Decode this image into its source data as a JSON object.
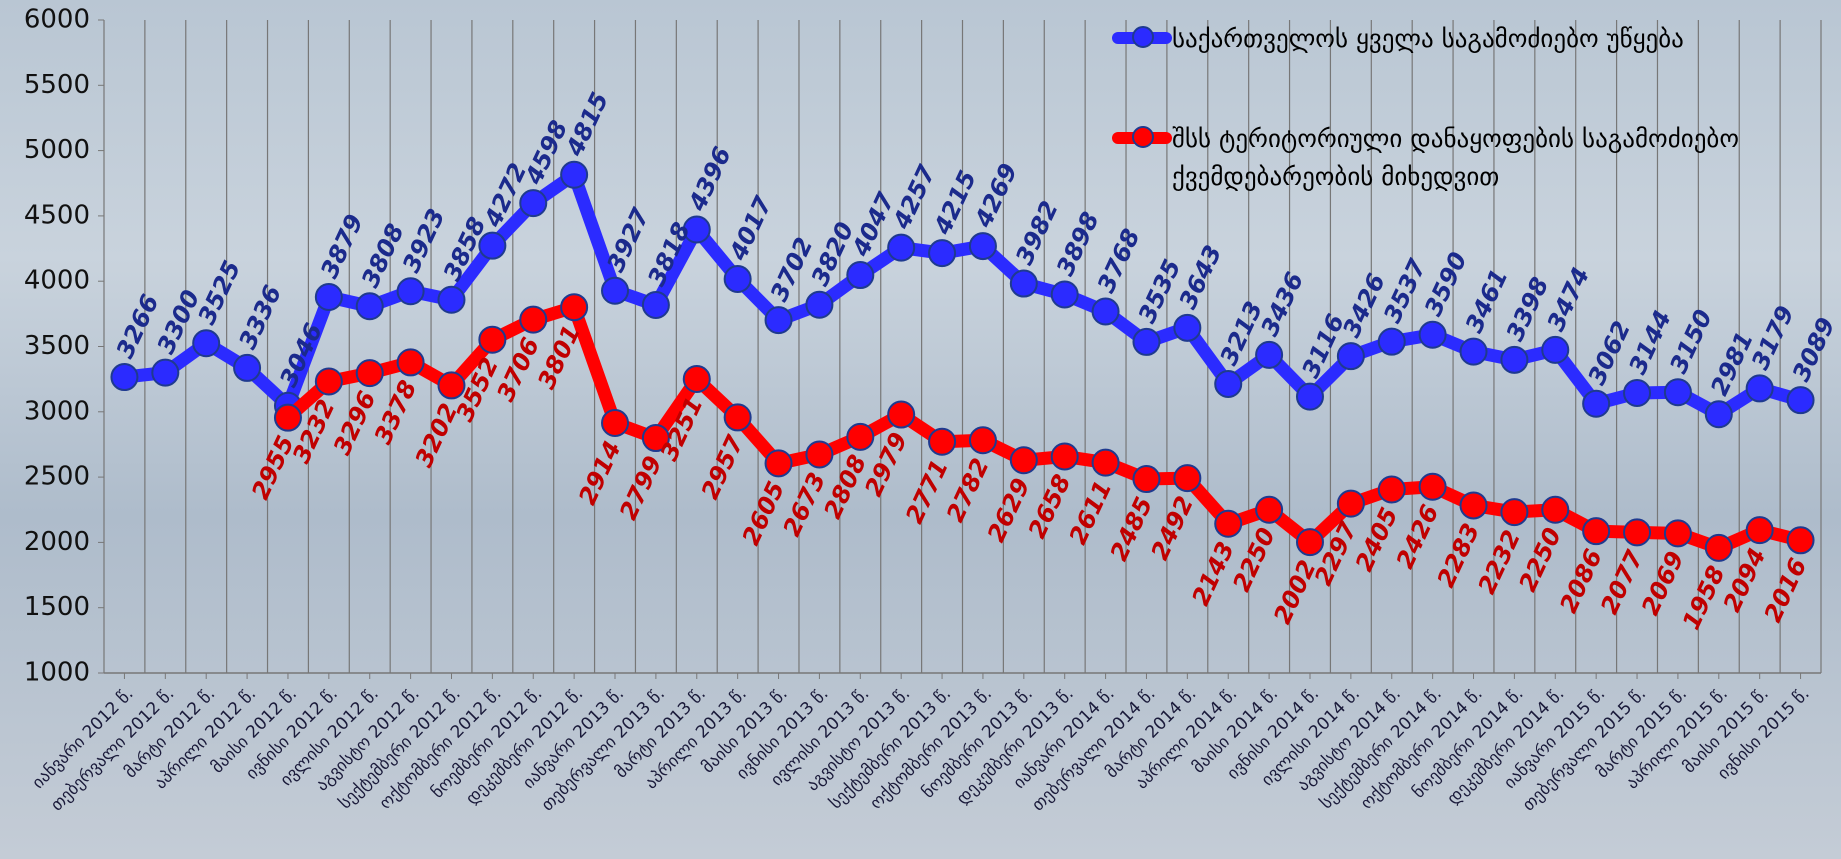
{
  "chart_data": {
    "type": "line",
    "categories": [
      "იანვარი 2012 წ.",
      "თებერვალი 2012 წ.",
      "მარტი 2012 წ.",
      "აპრილი 2012 წ.",
      "მაისი 2012 წ.",
      "ივნისი 2012 წ.",
      "ივლისი 2012 წ.",
      "აგვისტო 2012 წ.",
      "სექტემბერი 2012 წ.",
      "ოქტომბერი 2012 წ.",
      "ნოემბერი 2012 წ.",
      "დეკემბერი 2012 წ.",
      "იანვარი 2013 წ.",
      "თებერვალი 2013 წ.",
      "მარტი 2013 წ.",
      "აპრილი 2013 წ.",
      "მაისი 2013 წ.",
      "ივნისი 2013 წ.",
      "ივლისი 2013 წ.",
      "აგვისტო 2013 წ.",
      "სექტემბერი 2013 წ.",
      "ოქტომბერი 2013 წ.",
      "ნოემბერი 2013 წ.",
      "დეკემბერი 2013 წ.",
      "იანვარი 2014 წ.",
      "თებერვალი 2014 წ.",
      "მარტი 2014 წ.",
      "აპრილი 2014 წ.",
      "მაისი 2014 წ.",
      "ივნისი 2014 წ.",
      "ივლისი 2014 წ.",
      "აგვისტო 2014 წ.",
      "სექტემბერი 2014 წ.",
      "ოქტომბერი 2014 წ.",
      "ნოემბერი 2014 წ.",
      "დეკემბერი 2014 წ.",
      "იანვარი 2015 წ.",
      "თებერვალი 2015 წ.",
      "მარტი 2015 წ.",
      "აპრილი 2015 წ.",
      "მაისი 2015 წ.",
      "ივნისი 2015 წ."
    ],
    "series": [
      {
        "name": "საქართველოს ყველა საგამოძიებო უწყება",
        "color": "#2b2bff",
        "label_color": "#1b2a8c",
        "values": [
          3266,
          3300,
          3525,
          3336,
          3046,
          3879,
          3808,
          3923,
          3858,
          4272,
          4598,
          4815,
          3927,
          3818,
          4396,
          4017,
          3702,
          3820,
          4047,
          4257,
          4215,
          4269,
          3982,
          3898,
          3768,
          3535,
          3643,
          3213,
          3436,
          3116,
          3426,
          3537,
          3590,
          3461,
          3398,
          3474,
          3062,
          3144,
          3150,
          2981,
          3179,
          3089
        ]
      },
      {
        "name": "შსს ტერიტორიული დანაყოფების საგამოძიებო ქვემდებარეობის მიხედვით",
        "color": "#ff0000",
        "label_color": "#c00000",
        "values": [
          null,
          null,
          null,
          null,
          2955,
          3232,
          3296,
          3378,
          3202,
          3552,
          3706,
          3801,
          2914,
          2799,
          3251,
          2957,
          2605,
          2673,
          2808,
          2979,
          2771,
          2782,
          2629,
          2658,
          2611,
          2485,
          2492,
          2143,
          2250,
          2002,
          2297,
          2405,
          2426,
          2283,
          2232,
          2250,
          2086,
          2077,
          2069,
          1958,
          2094,
          2016
        ]
      }
    ],
    "ylim": [
      1000,
      6000
    ],
    "yticks": [
      1000,
      1500,
      2000,
      2500,
      3000,
      3500,
      4000,
      4500,
      5000,
      5500,
      6000
    ],
    "grid": "vertical",
    "legend": "top-right"
  }
}
